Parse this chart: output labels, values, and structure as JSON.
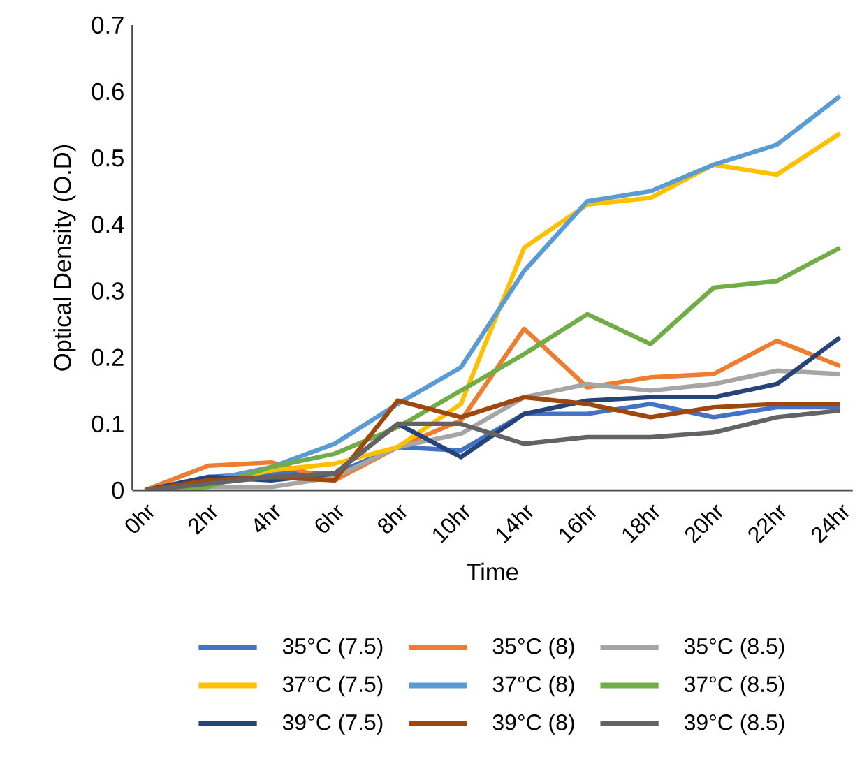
{
  "chart_data": {
    "type": "line",
    "xlabel": "Time",
    "ylabel": "Optical Density (O.D)",
    "categories": [
      "0hr",
      "2hr",
      "4hr",
      "6hr",
      "8hr",
      "10hr",
      "14hr",
      "16hr",
      "18hr",
      "20hr",
      "22hr",
      "24hr"
    ],
    "ylim": [
      0,
      0.7
    ],
    "yticks": [
      0,
      0.1,
      0.2,
      0.3,
      0.4,
      0.5,
      0.6,
      0.7
    ],
    "grid": false,
    "legend": "bottom",
    "marker": "none",
    "line_style": "solid",
    "series": [
      {
        "name": "35°C (7.5)",
        "color": "#4472c4",
        "values": [
          0,
          0.02,
          0.025,
          0.025,
          0.065,
          0.06,
          0.115,
          0.115,
          0.13,
          0.11,
          0.125,
          0.125
        ]
      },
      {
        "name": "35°C (8)",
        "color": "#ed7d31",
        "values": [
          0,
          0.037,
          0.042,
          0.015,
          0.065,
          0.105,
          0.243,
          0.155,
          0.17,
          0.175,
          0.225,
          0.187
        ]
      },
      {
        "name": "35°C (8.5)",
        "color": "#a5a5a5",
        "values": [
          0,
          0.005,
          0.005,
          0.02,
          0.065,
          0.085,
          0.14,
          0.16,
          0.15,
          0.16,
          0.18,
          0.175
        ]
      },
      {
        "name": "37°C (7.5)",
        "color": "#ffc000",
        "values": [
          0,
          0.01,
          0.03,
          0.04,
          0.065,
          0.13,
          0.365,
          0.43,
          0.44,
          0.49,
          0.475,
          0.537
        ]
      },
      {
        "name": "37°C (8)",
        "color": "#5b9bd5",
        "values": [
          0,
          0.015,
          0.035,
          0.07,
          0.13,
          0.185,
          0.33,
          0.435,
          0.45,
          0.49,
          0.52,
          0.593
        ]
      },
      {
        "name": "37°C (8.5)",
        "color": "#70ad47",
        "values": [
          0,
          0.005,
          0.035,
          0.055,
          0.095,
          0.15,
          0.205,
          0.265,
          0.22,
          0.305,
          0.315,
          0.365
        ]
      },
      {
        "name": "39°C (7.5)",
        "color": "#264478",
        "values": [
          0,
          0.02,
          0.015,
          0.025,
          0.1,
          0.05,
          0.115,
          0.135,
          0.14,
          0.14,
          0.16,
          0.23
        ]
      },
      {
        "name": "39°C (8)",
        "color": "#9e480e",
        "values": [
          0,
          0.015,
          0.02,
          0.015,
          0.135,
          0.11,
          0.14,
          0.13,
          0.11,
          0.125,
          0.13,
          0.13
        ]
      },
      {
        "name": "39°C (8.5)",
        "color": "#636363",
        "values": [
          0,
          0.01,
          0.02,
          0.025,
          0.1,
          0.1,
          0.07,
          0.08,
          0.08,
          0.087,
          0.11,
          0.12
        ]
      }
    ]
  }
}
